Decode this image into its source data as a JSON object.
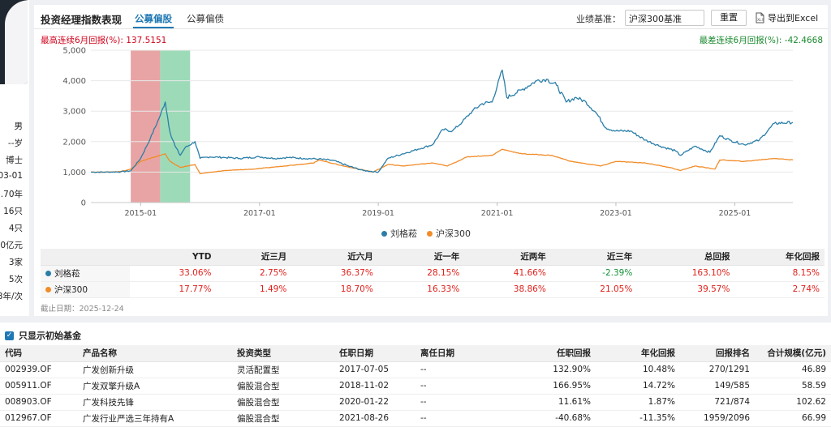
{
  "left_panel": {
    "info": [
      "男",
      "--岁",
      "博士",
      "03-01",
      ".70年",
      "16只",
      "4只",
      "0亿元",
      "3家",
      "5次",
      "8年/次"
    ]
  },
  "header": {
    "title": "投资经理指数表现",
    "tabs": [
      {
        "label": "公募偏股",
        "active": true
      },
      {
        "label": "公募偏债",
        "active": false
      }
    ],
    "benchmark_label": "业绩基准：",
    "benchmark_value": "沪深300基准",
    "reset_label": "重置",
    "export_label": "导出到Excel",
    "export_icon": "excel-export-icon"
  },
  "stats": {
    "best_label": "最高连续6月回报(%): 137.5151",
    "worst_label": "最差连续6月回报(%): -42.4668"
  },
  "colors": {
    "manager": "#2a7ea8",
    "benchmark": "#f28c28",
    "best_highlight": "#e08585",
    "worst_highlight": "#7ccfa0",
    "positive": "#e0201b",
    "negative": "#16923a",
    "accent": "#1f78b4"
  },
  "chart_data": {
    "type": "line",
    "x_type": "date",
    "xlim": [
      "2014-03-01",
      "2025-12-24"
    ],
    "ylim": [
      0,
      5000
    ],
    "y_ticks": [
      0,
      1000,
      2000,
      3000,
      4000,
      5000
    ],
    "y_tick_labels": [
      "0",
      "1,000",
      "2,000",
      "3,000",
      "4,000",
      "5,000"
    ],
    "x_ticks": [
      "2015-01",
      "2017-01",
      "2019-01",
      "2021-01",
      "2023-01",
      "2025-01"
    ],
    "grid": true,
    "legend_position": "bottom-center",
    "highlight_bands": [
      {
        "name": "best",
        "from": "2014-11-01",
        "to": "2015-05-01"
      },
      {
        "name": "worst",
        "from": "2015-05-01",
        "to": "2015-11-01"
      }
    ],
    "series": [
      {
        "name": "刘格菘",
        "points": [
          [
            "2014-03-01",
            1000
          ],
          [
            "2014-06-01",
            1000
          ],
          [
            "2014-09-01",
            1010
          ],
          [
            "2014-11-01",
            1040
          ],
          [
            "2015-01-01",
            1450
          ],
          [
            "2015-03-01",
            2100
          ],
          [
            "2015-05-01",
            2850
          ],
          [
            "2015-06-01",
            3300
          ],
          [
            "2015-07-01",
            2300
          ],
          [
            "2015-08-01",
            1850
          ],
          [
            "2015-09-01",
            1550
          ],
          [
            "2015-10-01",
            1800
          ],
          [
            "2015-12-01",
            2000
          ],
          [
            "2016-01-01",
            1450
          ],
          [
            "2016-03-01",
            1500
          ],
          [
            "2016-06-01",
            1480
          ],
          [
            "2016-09-01",
            1450
          ],
          [
            "2017-01-01",
            1500
          ],
          [
            "2017-04-01",
            1450
          ],
          [
            "2017-07-01",
            1480
          ],
          [
            "2017-10-01",
            1450
          ],
          [
            "2018-01-01",
            1430
          ],
          [
            "2018-04-01",
            1380
          ],
          [
            "2018-07-01",
            1200
          ],
          [
            "2018-10-01",
            1050
          ],
          [
            "2019-01-01",
            1000
          ],
          [
            "2019-03-01",
            1450
          ],
          [
            "2019-06-01",
            1600
          ],
          [
            "2019-09-01",
            1750
          ],
          [
            "2019-12-01",
            1900
          ],
          [
            "2020-02-01",
            2400
          ],
          [
            "2020-04-01",
            2350
          ],
          [
            "2020-06-01",
            2650
          ],
          [
            "2020-08-01",
            3000
          ],
          [
            "2020-10-01",
            3250
          ],
          [
            "2020-12-01",
            3300
          ],
          [
            "2021-02-01",
            4350
          ],
          [
            "2021-03-01",
            3450
          ],
          [
            "2021-06-01",
            3700
          ],
          [
            "2021-09-01",
            4000
          ],
          [
            "2021-11-01",
            4050
          ],
          [
            "2022-01-01",
            3850
          ],
          [
            "2022-03-01",
            3300
          ],
          [
            "2022-05-01",
            3450
          ],
          [
            "2022-07-01",
            3300
          ],
          [
            "2022-09-01",
            2950
          ],
          [
            "2022-11-01",
            2450
          ],
          [
            "2023-01-01",
            2350
          ],
          [
            "2023-04-01",
            2350
          ],
          [
            "2023-07-01",
            2050
          ],
          [
            "2023-10-01",
            1850
          ],
          [
            "2024-01-01",
            1700
          ],
          [
            "2024-02-01",
            1550
          ],
          [
            "2024-05-01",
            1850
          ],
          [
            "2024-08-01",
            1650
          ],
          [
            "2024-10-01",
            2200
          ],
          [
            "2024-12-01",
            2050
          ],
          [
            "2025-03-01",
            1900
          ],
          [
            "2025-06-01",
            2050
          ],
          [
            "2025-09-01",
            2600
          ],
          [
            "2025-12-24",
            2630
          ]
        ]
      },
      {
        "name": "沪深300",
        "points": [
          [
            "2014-03-01",
            1000
          ],
          [
            "2014-06-01",
            1000
          ],
          [
            "2014-09-01",
            1020
          ],
          [
            "2014-11-01",
            1100
          ],
          [
            "2015-01-01",
            1350
          ],
          [
            "2015-03-01",
            1450
          ],
          [
            "2015-06-01",
            1600
          ],
          [
            "2015-07-01",
            1350
          ],
          [
            "2015-09-01",
            1150
          ],
          [
            "2015-12-01",
            1250
          ],
          [
            "2016-01-01",
            950
          ],
          [
            "2016-06-01",
            1050
          ],
          [
            "2016-12-01",
            1100
          ],
          [
            "2017-06-01",
            1200
          ],
          [
            "2017-12-01",
            1300
          ],
          [
            "2018-01-01",
            1400
          ],
          [
            "2018-06-01",
            1200
          ],
          [
            "2018-12-01",
            1000
          ],
          [
            "2019-03-01",
            1250
          ],
          [
            "2019-06-01",
            1200
          ],
          [
            "2019-12-01",
            1300
          ],
          [
            "2020-03-01",
            1200
          ],
          [
            "2020-07-01",
            1500
          ],
          [
            "2020-12-01",
            1550
          ],
          [
            "2021-02-01",
            1750
          ],
          [
            "2021-06-01",
            1600
          ],
          [
            "2021-12-01",
            1550
          ],
          [
            "2022-04-01",
            1350
          ],
          [
            "2022-10-01",
            1200
          ],
          [
            "2023-01-01",
            1350
          ],
          [
            "2023-07-01",
            1300
          ],
          [
            "2023-12-01",
            1150
          ],
          [
            "2024-02-01",
            1050
          ],
          [
            "2024-05-01",
            1200
          ],
          [
            "2024-09-01",
            1100
          ],
          [
            "2024-10-01",
            1400
          ],
          [
            "2025-03-01",
            1350
          ],
          [
            "2025-09-01",
            1450
          ],
          [
            "2025-12-24",
            1400
          ]
        ]
      }
    ]
  },
  "perf_table": {
    "headers": [
      "",
      "YTD",
      "近三月",
      "近六月",
      "近一年",
      "近两年",
      "近三年",
      "总回报",
      "年化回报"
    ],
    "rows": [
      {
        "name": "刘格菘",
        "values": [
          "33.06%",
          "2.75%",
          "36.37%",
          "28.15%",
          "41.66%",
          "-2.39%",
          "163.10%",
          "8.15%"
        ]
      },
      {
        "name": "沪深300",
        "values": [
          "17.77%",
          "1.49%",
          "18.70%",
          "16.33%",
          "38.86%",
          "21.05%",
          "39.57%",
          "2.74%"
        ]
      }
    ],
    "cutoff_label": "截止日期：2025-12-24"
  },
  "fund_section": {
    "only_initial_label": "只显示初始基金",
    "headers": [
      "代码",
      "产品名称",
      "投资类型",
      "任职日期",
      "离任日期",
      "任职回报",
      "年化回报",
      "回报排名",
      "合计规模(亿元)"
    ],
    "rows": [
      [
        "002939.OF",
        "广发创新升级",
        "灵活配置型",
        "2017-07-05",
        "--",
        "132.90%",
        "10.48%",
        "270/1291",
        "46.89"
      ],
      [
        "005911.OF",
        "广发双擎升级A",
        "偏股混合型",
        "2018-11-02",
        "--",
        "166.95%",
        "14.72%",
        "149/585",
        "58.59"
      ],
      [
        "008903.OF",
        "广发科技先锋",
        "偏股混合型",
        "2020-01-22",
        "--",
        "11.61%",
        "1.87%",
        "721/874",
        "102.62"
      ],
      [
        "012967.OF",
        "广发行业严选三年持有A",
        "偏股混合型",
        "2021-08-26",
        "--",
        "-40.68%",
        "-11.35%",
        "1959/2096",
        "66.99"
      ]
    ]
  }
}
